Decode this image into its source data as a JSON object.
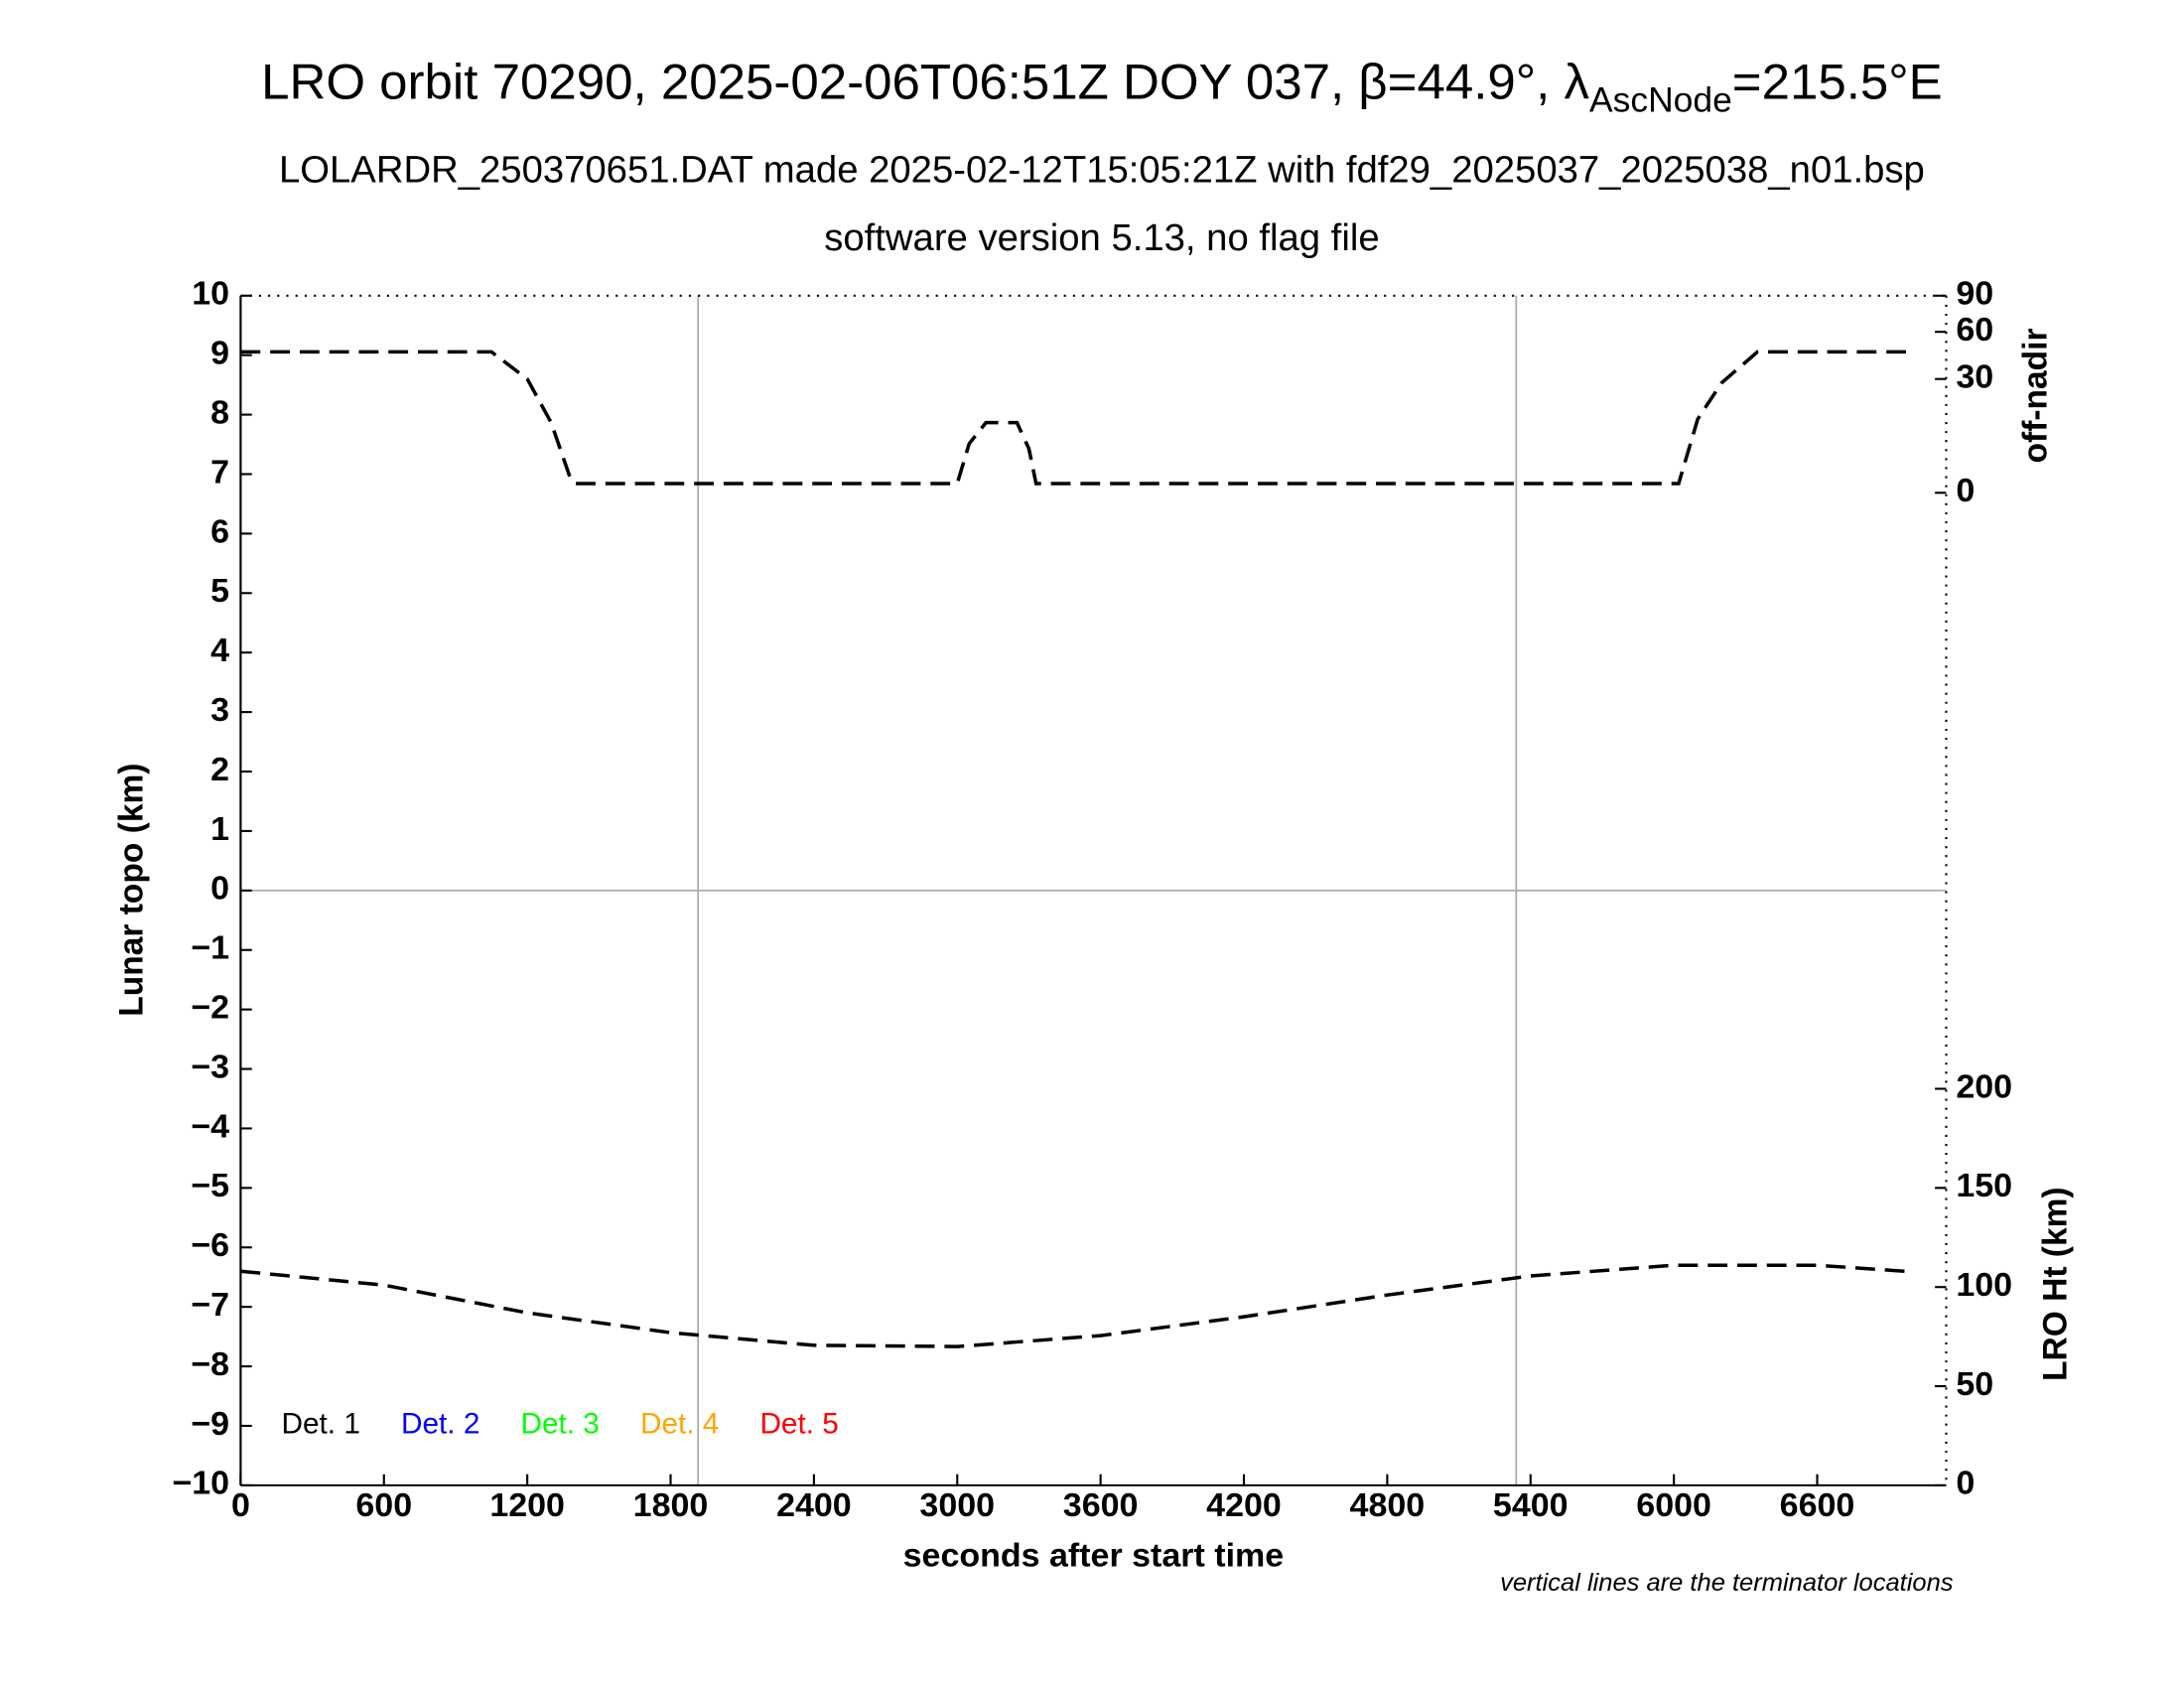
{
  "chart_data": {
    "type": "line",
    "title": {
      "main": "LRO orbit 70290, 2025-02-06T06:51Z DOY 037, β=44.9°, λ",
      "sub": "AscNode",
      "tail": "=215.5°E"
    },
    "subtitle": "LOLARDR_250370651.DAT made 2025-02-12T15:05:21Z with fdf29_2025037_2025038_n01.bsp",
    "subtitle2": "software version 5.13, no flag file",
    "xlabel": "seconds after start time",
    "ylabel": "Lunar topo (km)",
    "y2label": "off-nadir",
    "y3label": "LRO Ht (km)",
    "note": "vertical lines are the terminator locations",
    "xlim": [
      0,
      7140
    ],
    "xticks": [
      0,
      600,
      1200,
      1800,
      2400,
      3000,
      3600,
      4200,
      4800,
      5400,
      6000,
      6600
    ],
    "ylim": [
      -10,
      10
    ],
    "yticks": [
      {
        "value": -10,
        "label": "−10"
      },
      {
        "value": -9,
        "label": "−9"
      },
      {
        "value": -8,
        "label": "−8"
      },
      {
        "value": -7,
        "label": "−7"
      },
      {
        "value": -6,
        "label": "−6"
      },
      {
        "value": -5,
        "label": "−5"
      },
      {
        "value": -4,
        "label": "−4"
      },
      {
        "value": -3,
        "label": "−3"
      },
      {
        "value": -2,
        "label": "−2"
      },
      {
        "value": -1,
        "label": "−1"
      },
      0,
      1,
      2,
      3,
      4,
      5,
      6,
      7,
      8,
      9,
      10
    ],
    "y2lim": [
      0,
      90
    ],
    "y2ticks": [
      0,
      30,
      60,
      90
    ],
    "y2scale": "sqrt",
    "y3lim": [
      0,
      210
    ],
    "y3ticks": [
      0,
      50,
      100,
      150,
      200
    ],
    "terminators": [
      1915,
      5340
    ],
    "legend": "lower left",
    "detectors": [
      {
        "name": "Det. 1",
        "color": "#000000"
      },
      {
        "name": "Det. 2",
        "color": "#0000ff"
      },
      {
        "name": "Det. 3",
        "color": "#00ff00"
      },
      {
        "name": "Det. 4",
        "color": "#ffa500"
      },
      {
        "name": "Det. 5",
        "color": "#ff0000"
      }
    ],
    "series": [
      {
        "axis": "y2",
        "color": "#000000",
        "x": [
          0,
          1050,
          1200,
          1300,
          1380,
          1400,
          3000,
          3050,
          3120,
          3250,
          3300,
          3330,
          6020,
          6100,
          6200,
          6350,
          7000
        ],
        "values": [
          46,
          46,
          30,
          11.4,
          0.5,
          0.2,
          0.2,
          5.6,
          11.4,
          11.4,
          4.5,
          0.2,
          0.2,
          12.6,
          28,
          46,
          46
        ]
      },
      {
        "axis": "y3",
        "color": "#000000",
        "x": [
          0,
          600,
          1200,
          1800,
          2400,
          3000,
          3600,
          4200,
          4800,
          5400,
          6000,
          6600,
          7000
        ],
        "values": [
          108,
          101,
          87,
          77,
          70.6,
          70,
          75.5,
          85,
          96,
          105.6,
          111,
          111,
          107.7
        ]
      }
    ]
  }
}
